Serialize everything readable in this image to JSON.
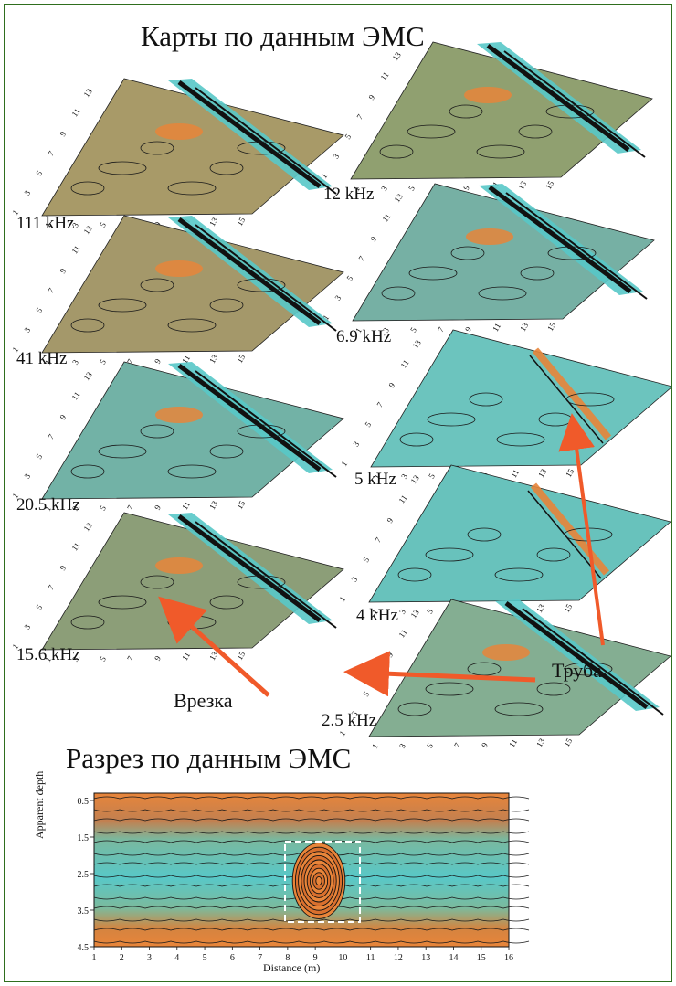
{
  "titles": {
    "maps": "Карты по данным ЭМС",
    "section": "Разрез по данным ЭМС"
  },
  "frequencies": {
    "left": [
      "111 kHz",
      "41 kHz",
      "20.5 kHz",
      "15.6 kHz"
    ],
    "right": [
      "12 kHz",
      "6.9 kHz",
      "5 kHz",
      "4 kHz",
      "2.5 kHz"
    ]
  },
  "map_axes": {
    "x_ticks": [
      "1",
      "3",
      "5",
      "7",
      "9",
      "11",
      "13",
      "15"
    ],
    "y_ticks": [
      "1",
      "3",
      "5",
      "7",
      "9",
      "11",
      "13"
    ]
  },
  "callouts": {
    "insertion": "Врезка",
    "pipe": "Труба"
  },
  "section_chart": {
    "xlabel": "Distance (m)",
    "ylabel": "Apparent depth",
    "x_ticks": [
      "1",
      "2",
      "3",
      "4",
      "5",
      "6",
      "7",
      "8",
      "9",
      "10",
      "11",
      "12",
      "13",
      "14",
      "15",
      "16"
    ],
    "y_ticks": [
      "0.5",
      "1.5",
      "2.5",
      "3.5",
      "4.5"
    ]
  },
  "colors": {
    "frame": "#2f6e1e",
    "high": "#e8853a",
    "mid": "#8fb07a",
    "low": "#58c8c8",
    "anomaly": "#111111",
    "arrow": "#f05a2a",
    "highlight_box": "#ffffff"
  }
}
